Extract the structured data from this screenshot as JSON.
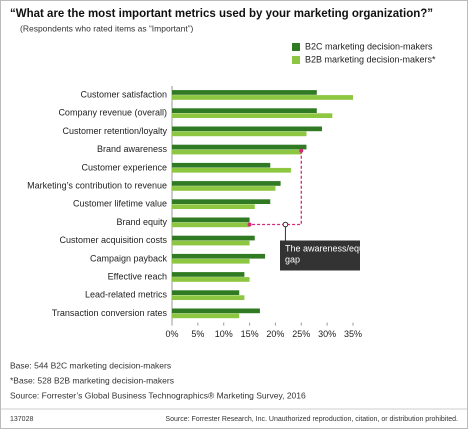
{
  "chart_data": {
    "type": "hbar",
    "title": "“What are the most important metrics used by your marketing organization?”",
    "subtitle": "(Respondents who rated items as “Important”)",
    "categories": [
      "Customer satisfaction",
      "Company revenue (overall)",
      "Customer retention/loyalty",
      "Brand awareness",
      "Customer experience",
      "Marketing’s contribution to revenue",
      "Customer lifetime value",
      "Brand equity",
      "Customer acquisition costs",
      "Campaign payback",
      "Effective reach",
      "Lead-related metrics",
      "Transaction conversion rates"
    ],
    "series": [
      {
        "name": "B2C marketing decision-makers",
        "color": "#2f7a22",
        "values": [
          28,
          28,
          29,
          26,
          19,
          21,
          19,
          15,
          16,
          18,
          14,
          13,
          17
        ]
      },
      {
        "name": "B2B marketing decision-makers*",
        "color": "#8dc641",
        "values": [
          35,
          31,
          26,
          25,
          23,
          20,
          16,
          15,
          15,
          15,
          15,
          14,
          13
        ]
      }
    ],
    "xlim": [
      0,
      35
    ],
    "xticks": [
      {
        "value": 0,
        "label": "0%"
      },
      {
        "value": 5,
        "label": "5%"
      },
      {
        "value": 10,
        "label": "10%"
      },
      {
        "value": 15,
        "label": "15%"
      },
      {
        "value": 20,
        "label": "20%"
      },
      {
        "value": 25,
        "label": "25%"
      },
      {
        "value": 30,
        "label": "30%"
      },
      {
        "value": 35,
        "label": "35%"
      }
    ],
    "legend": "top-right",
    "annotation": "The awareness/equity gap",
    "notes": [
      "Base: 544 B2C marketing decision-makers",
      "*Base: 528 B2B marketing decision-makers",
      "Source: Forrester’s Global Business Technographics® Marketing Survey, 2016"
    ],
    "footer_id": "137028",
    "footer_source": "Source: Forrester Research, Inc. Unauthorized reproduction, citation, or distribution prohibited."
  }
}
